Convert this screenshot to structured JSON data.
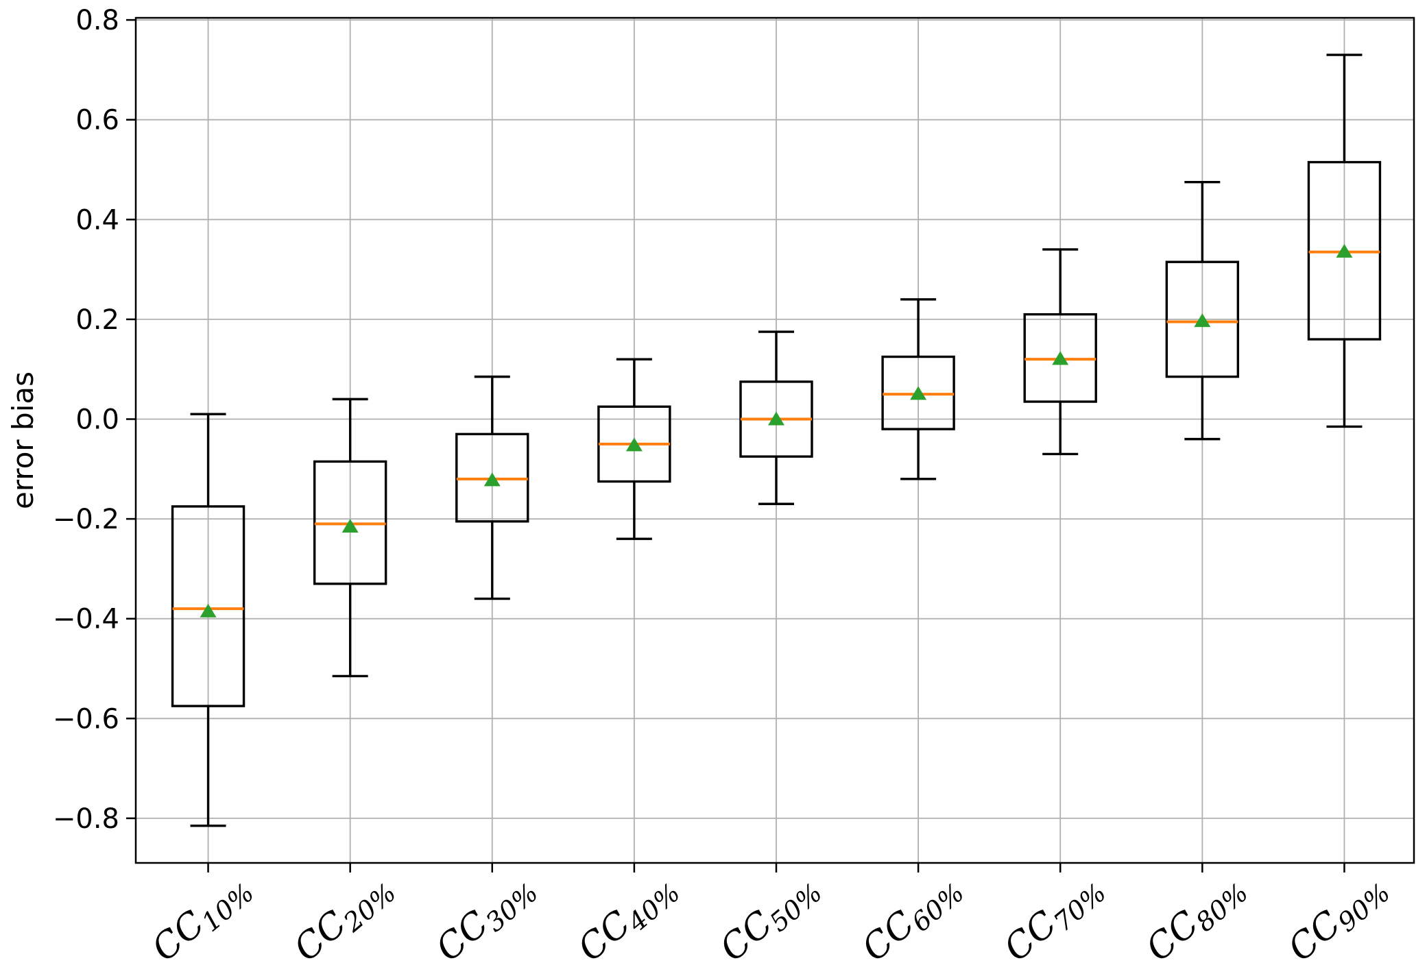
{
  "figure": {
    "background": "#ffffff",
    "title": ""
  },
  "chart_data": {
    "type": "boxplot",
    "title": "",
    "xlabel": "",
    "ylabel": "error bias",
    "ylim": [
      -0.89,
      0.81
    ],
    "grid": true,
    "grid_color": "#b0b0b0",
    "yticks": [
      0.8,
      0.6,
      0.4,
      0.2,
      0.0,
      -0.2,
      -0.4,
      -0.6,
      -0.8
    ],
    "ytick_labels": [
      "0.8",
      "0.6",
      "0.4",
      "0.2",
      "0.0",
      "−0.2",
      "−0.4",
      "−0.6",
      "−0.8"
    ],
    "categories": [
      {
        "label": "CC10%",
        "prefix": "CC",
        "subscript": "10%"
      },
      {
        "label": "CC20%",
        "prefix": "CC",
        "subscript": "20%"
      },
      {
        "label": "CC30%",
        "prefix": "CC",
        "subscript": "30%"
      },
      {
        "label": "CC40%",
        "prefix": "CC",
        "subscript": "40%"
      },
      {
        "label": "CC50%",
        "prefix": "CC",
        "subscript": "50%"
      },
      {
        "label": "CC60%",
        "prefix": "CC",
        "subscript": "60%"
      },
      {
        "label": "CC70%",
        "prefix": "CC",
        "subscript": "70%"
      },
      {
        "label": "CC80%",
        "prefix": "CC",
        "subscript": "80%"
      },
      {
        "label": "CC90%",
        "prefix": "CC",
        "subscript": "90%"
      }
    ],
    "series": [
      {
        "category": "CC10%",
        "whisker_low": -0.815,
        "q1": -0.575,
        "median": -0.38,
        "mean": -0.385,
        "q3": -0.175,
        "whisker_high": 0.01
      },
      {
        "category": "CC20%",
        "whisker_low": -0.515,
        "q1": -0.33,
        "median": -0.21,
        "mean": -0.215,
        "q3": -0.085,
        "whisker_high": 0.04
      },
      {
        "category": "CC30%",
        "whisker_low": -0.36,
        "q1": -0.205,
        "median": -0.12,
        "mean": -0.122,
        "q3": -0.03,
        "whisker_high": 0.085
      },
      {
        "category": "CC40%",
        "whisker_low": -0.24,
        "q1": -0.125,
        "median": -0.05,
        "mean": -0.052,
        "q3": 0.025,
        "whisker_high": 0.12
      },
      {
        "category": "CC50%",
        "whisker_low": -0.17,
        "q1": -0.075,
        "median": 0.0,
        "mean": 0.0,
        "q3": 0.075,
        "whisker_high": 0.175
      },
      {
        "category": "CC60%",
        "whisker_low": -0.12,
        "q1": -0.02,
        "median": 0.05,
        "mean": 0.051,
        "q3": 0.125,
        "whisker_high": 0.24
      },
      {
        "category": "CC70%",
        "whisker_low": -0.07,
        "q1": 0.035,
        "median": 0.12,
        "mean": 0.121,
        "q3": 0.21,
        "whisker_high": 0.34
      },
      {
        "category": "CC80%",
        "whisker_low": -0.04,
        "q1": 0.085,
        "median": 0.195,
        "mean": 0.197,
        "q3": 0.315,
        "whisker_high": 0.475
      },
      {
        "category": "CC90%",
        "whisker_low": -0.015,
        "q1": 0.16,
        "median": 0.335,
        "mean": 0.336,
        "q3": 0.515,
        "whisker_high": 0.73
      }
    ],
    "colors": {
      "box_edge": "#000000",
      "whisker": "#000000",
      "cap": "#000000",
      "median": "#ff7f0e",
      "mean_marker": "#2ca02c",
      "grid": "#b0b0b0",
      "spine": "#000000",
      "background": "#ffffff"
    },
    "legend": null
  }
}
